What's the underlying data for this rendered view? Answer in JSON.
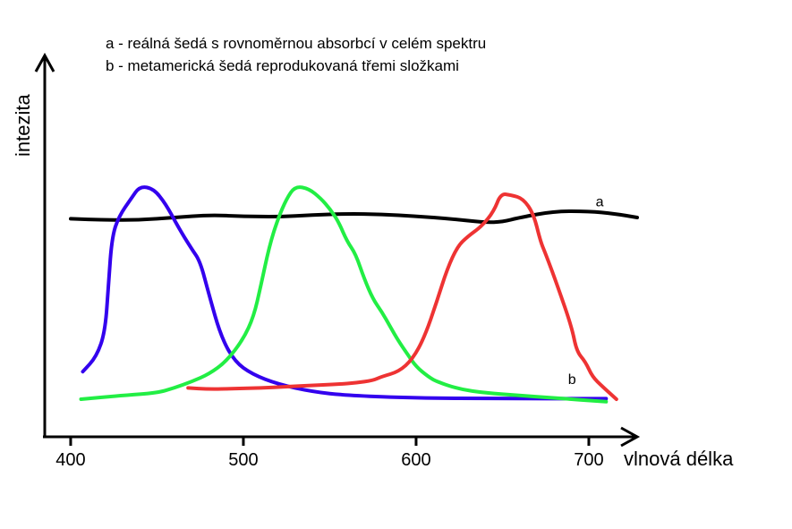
{
  "chart_data": {
    "type": "line",
    "legend": [
      "a - reálná šedá s rovnoměrnou absorbcí v celém spektru",
      "b - metamerická šedá reprodukovaná třemi složkami"
    ],
    "xlabel": "vlnová délka",
    "ylabel": "intezita",
    "xlim": [
      385,
      728
    ],
    "ylim": [
      0,
      1
    ],
    "xticks": [
      400,
      500,
      600,
      700
    ],
    "xtick_labels": [
      "400",
      "500",
      "600",
      "700"
    ],
    "series_labels": [
      {
        "text": "a",
        "x": 704,
        "y": 0.92
      },
      {
        "text": "b",
        "x": 688,
        "y": 0.21
      }
    ],
    "series": [
      {
        "id": "a",
        "color": "#000000",
        "points": [
          [
            400,
            0.87
          ],
          [
            420,
            0.865
          ],
          [
            440,
            0.865
          ],
          [
            460,
            0.875
          ],
          [
            480,
            0.885
          ],
          [
            500,
            0.88
          ],
          [
            520,
            0.878
          ],
          [
            540,
            0.885
          ],
          [
            560,
            0.89
          ],
          [
            580,
            0.888
          ],
          [
            600,
            0.88
          ],
          [
            620,
            0.87
          ],
          [
            640,
            0.855
          ],
          [
            650,
            0.858
          ],
          [
            660,
            0.875
          ],
          [
            680,
            0.9
          ],
          [
            700,
            0.9
          ],
          [
            715,
            0.89
          ],
          [
            728,
            0.875
          ]
        ]
      },
      {
        "id": "blue",
        "color": "#3300ee",
        "points": [
          [
            407,
            0.26
          ],
          [
            415,
            0.32
          ],
          [
            420,
            0.42
          ],
          [
            422,
            0.62
          ],
          [
            424,
            0.8
          ],
          [
            428,
            0.88
          ],
          [
            435,
            0.95
          ],
          [
            440,
            1.0
          ],
          [
            448,
            0.99
          ],
          [
            455,
            0.93
          ],
          [
            462,
            0.84
          ],
          [
            470,
            0.75
          ],
          [
            475,
            0.7
          ],
          [
            480,
            0.57
          ],
          [
            487,
            0.4
          ],
          [
            495,
            0.3
          ],
          [
            505,
            0.25
          ],
          [
            520,
            0.21
          ],
          [
            540,
            0.18
          ],
          [
            560,
            0.165
          ],
          [
            600,
            0.155
          ],
          [
            650,
            0.152
          ],
          [
            710,
            0.152
          ]
        ]
      },
      {
        "id": "green",
        "color": "#22ee44",
        "points": [
          [
            406,
            0.15
          ],
          [
            430,
            0.165
          ],
          [
            450,
            0.175
          ],
          [
            460,
            0.195
          ],
          [
            470,
            0.22
          ],
          [
            480,
            0.25
          ],
          [
            490,
            0.3
          ],
          [
            500,
            0.39
          ],
          [
            506,
            0.48
          ],
          [
            510,
            0.6
          ],
          [
            515,
            0.76
          ],
          [
            520,
            0.87
          ],
          [
            525,
            0.95
          ],
          [
            530,
            1.0
          ],
          [
            538,
            0.99
          ],
          [
            545,
            0.95
          ],
          [
            550,
            0.91
          ],
          [
            555,
            0.86
          ],
          [
            560,
            0.78
          ],
          [
            565,
            0.73
          ],
          [
            570,
            0.63
          ],
          [
            575,
            0.55
          ],
          [
            580,
            0.5
          ],
          [
            585,
            0.44
          ],
          [
            590,
            0.38
          ],
          [
            595,
            0.33
          ],
          [
            600,
            0.28
          ],
          [
            607,
            0.24
          ],
          [
            612,
            0.22
          ],
          [
            625,
            0.19
          ],
          [
            640,
            0.175
          ],
          [
            660,
            0.165
          ],
          [
            680,
            0.155
          ],
          [
            710,
            0.14
          ]
        ]
      },
      {
        "id": "red",
        "color": "#ee3333",
        "points": [
          [
            468,
            0.195
          ],
          [
            480,
            0.19
          ],
          [
            495,
            0.192
          ],
          [
            510,
            0.195
          ],
          [
            525,
            0.2
          ],
          [
            540,
            0.205
          ],
          [
            555,
            0.21
          ],
          [
            565,
            0.215
          ],
          [
            575,
            0.225
          ],
          [
            580,
            0.24
          ],
          [
            590,
            0.26
          ],
          [
            598,
            0.31
          ],
          [
            605,
            0.4
          ],
          [
            612,
            0.54
          ],
          [
            618,
            0.67
          ],
          [
            624,
            0.76
          ],
          [
            630,
            0.8
          ],
          [
            638,
            0.84
          ],
          [
            645,
            0.9
          ],
          [
            649,
            0.97
          ],
          [
            655,
            0.965
          ],
          [
            662,
            0.95
          ],
          [
            668,
            0.89
          ],
          [
            672,
            0.78
          ],
          [
            675,
            0.73
          ],
          [
            682,
            0.6
          ],
          [
            690,
            0.44
          ],
          [
            693,
            0.34
          ],
          [
            698,
            0.3
          ],
          [
            702,
            0.24
          ],
          [
            708,
            0.2
          ],
          [
            716,
            0.15
          ]
        ]
      }
    ]
  }
}
